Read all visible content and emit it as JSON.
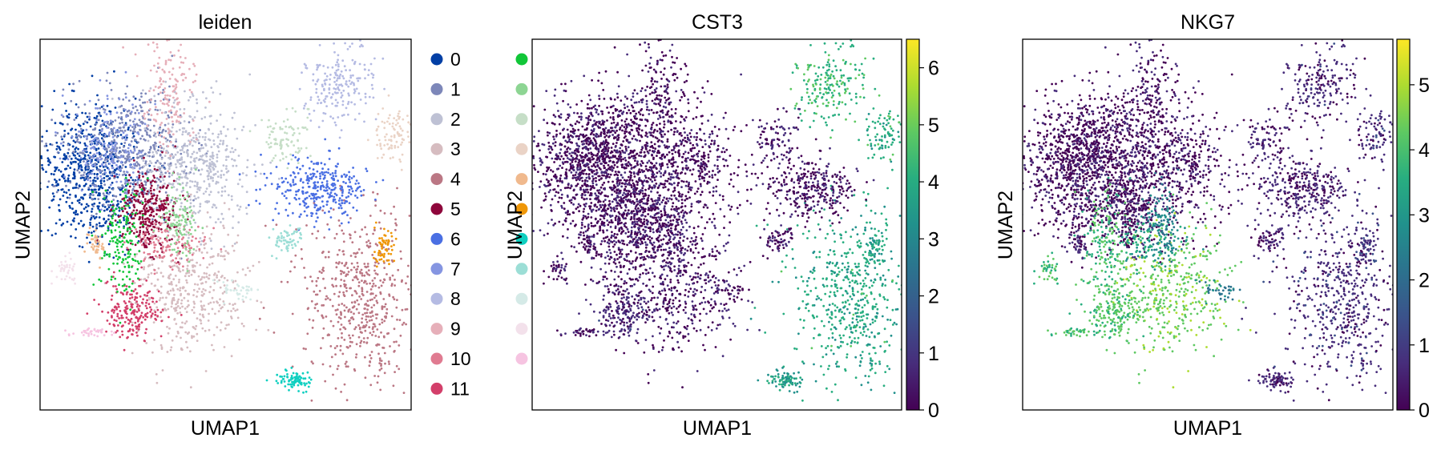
{
  "chart_data": [
    {
      "type": "scatter",
      "title": "leiden",
      "xlabel": "UMAP1",
      "ylabel": "UMAP2",
      "color_by": "categorical",
      "legend_placement": "right, two columns",
      "legend": [
        {
          "label": "0",
          "color": "#023fa5"
        },
        {
          "label": "1",
          "color": "#7d87b9"
        },
        {
          "label": "2",
          "color": "#bec1d4"
        },
        {
          "label": "3",
          "color": "#d6bcc0"
        },
        {
          "label": "4",
          "color": "#bb7784"
        },
        {
          "label": "5",
          "color": "#8e063b"
        },
        {
          "label": "6",
          "color": "#4a6fe3"
        },
        {
          "label": "7",
          "color": "#8595e1"
        },
        {
          "label": "8",
          "color": "#b5bbe3"
        },
        {
          "label": "9",
          "color": "#e6afb9"
        },
        {
          "label": "10",
          "color": "#e07b91"
        },
        {
          "label": "11",
          "color": "#d33f6a"
        },
        {
          "label": "",
          "color": "#11c638"
        },
        {
          "label": "",
          "color": "#8dd593"
        },
        {
          "label": "",
          "color": "#c6dec7"
        },
        {
          "label": "",
          "color": "#ead3c6"
        },
        {
          "label": "",
          "color": "#f0b98d"
        },
        {
          "label": "",
          "color": "#ef9708"
        },
        {
          "label": "",
          "color": "#0fcfc0"
        },
        {
          "label": "",
          "color": "#9cded6"
        },
        {
          "label": "",
          "color": "#d5eae7"
        },
        {
          "label": "",
          "color": "#f3e1eb"
        },
        {
          "label": "",
          "color": "#f6c4e1"
        }
      ]
    },
    {
      "type": "scatter",
      "title": "CST3",
      "xlabel": "UMAP1",
      "ylabel": "UMAP2",
      "color_by": "continuous",
      "colormap": "viridis",
      "colorbar_range": [
        0,
        6.5
      ],
      "colorbar_ticks": [
        "0",
        "1",
        "2",
        "3",
        "4",
        "5",
        "6"
      ],
      "colorbar_tick_values": [
        0,
        1,
        2,
        3,
        4,
        5,
        6
      ]
    },
    {
      "type": "scatter",
      "title": "NKG7",
      "xlabel": "UMAP1",
      "ylabel": "UMAP2",
      "color_by": "continuous",
      "colormap": "viridis",
      "colorbar_range": [
        0,
        5.7
      ],
      "colorbar_ticks": [
        "0",
        "1",
        "2",
        "3",
        "4",
        "5"
      ],
      "colorbar_tick_values": [
        0,
        1,
        2,
        3,
        4,
        5
      ]
    }
  ]
}
